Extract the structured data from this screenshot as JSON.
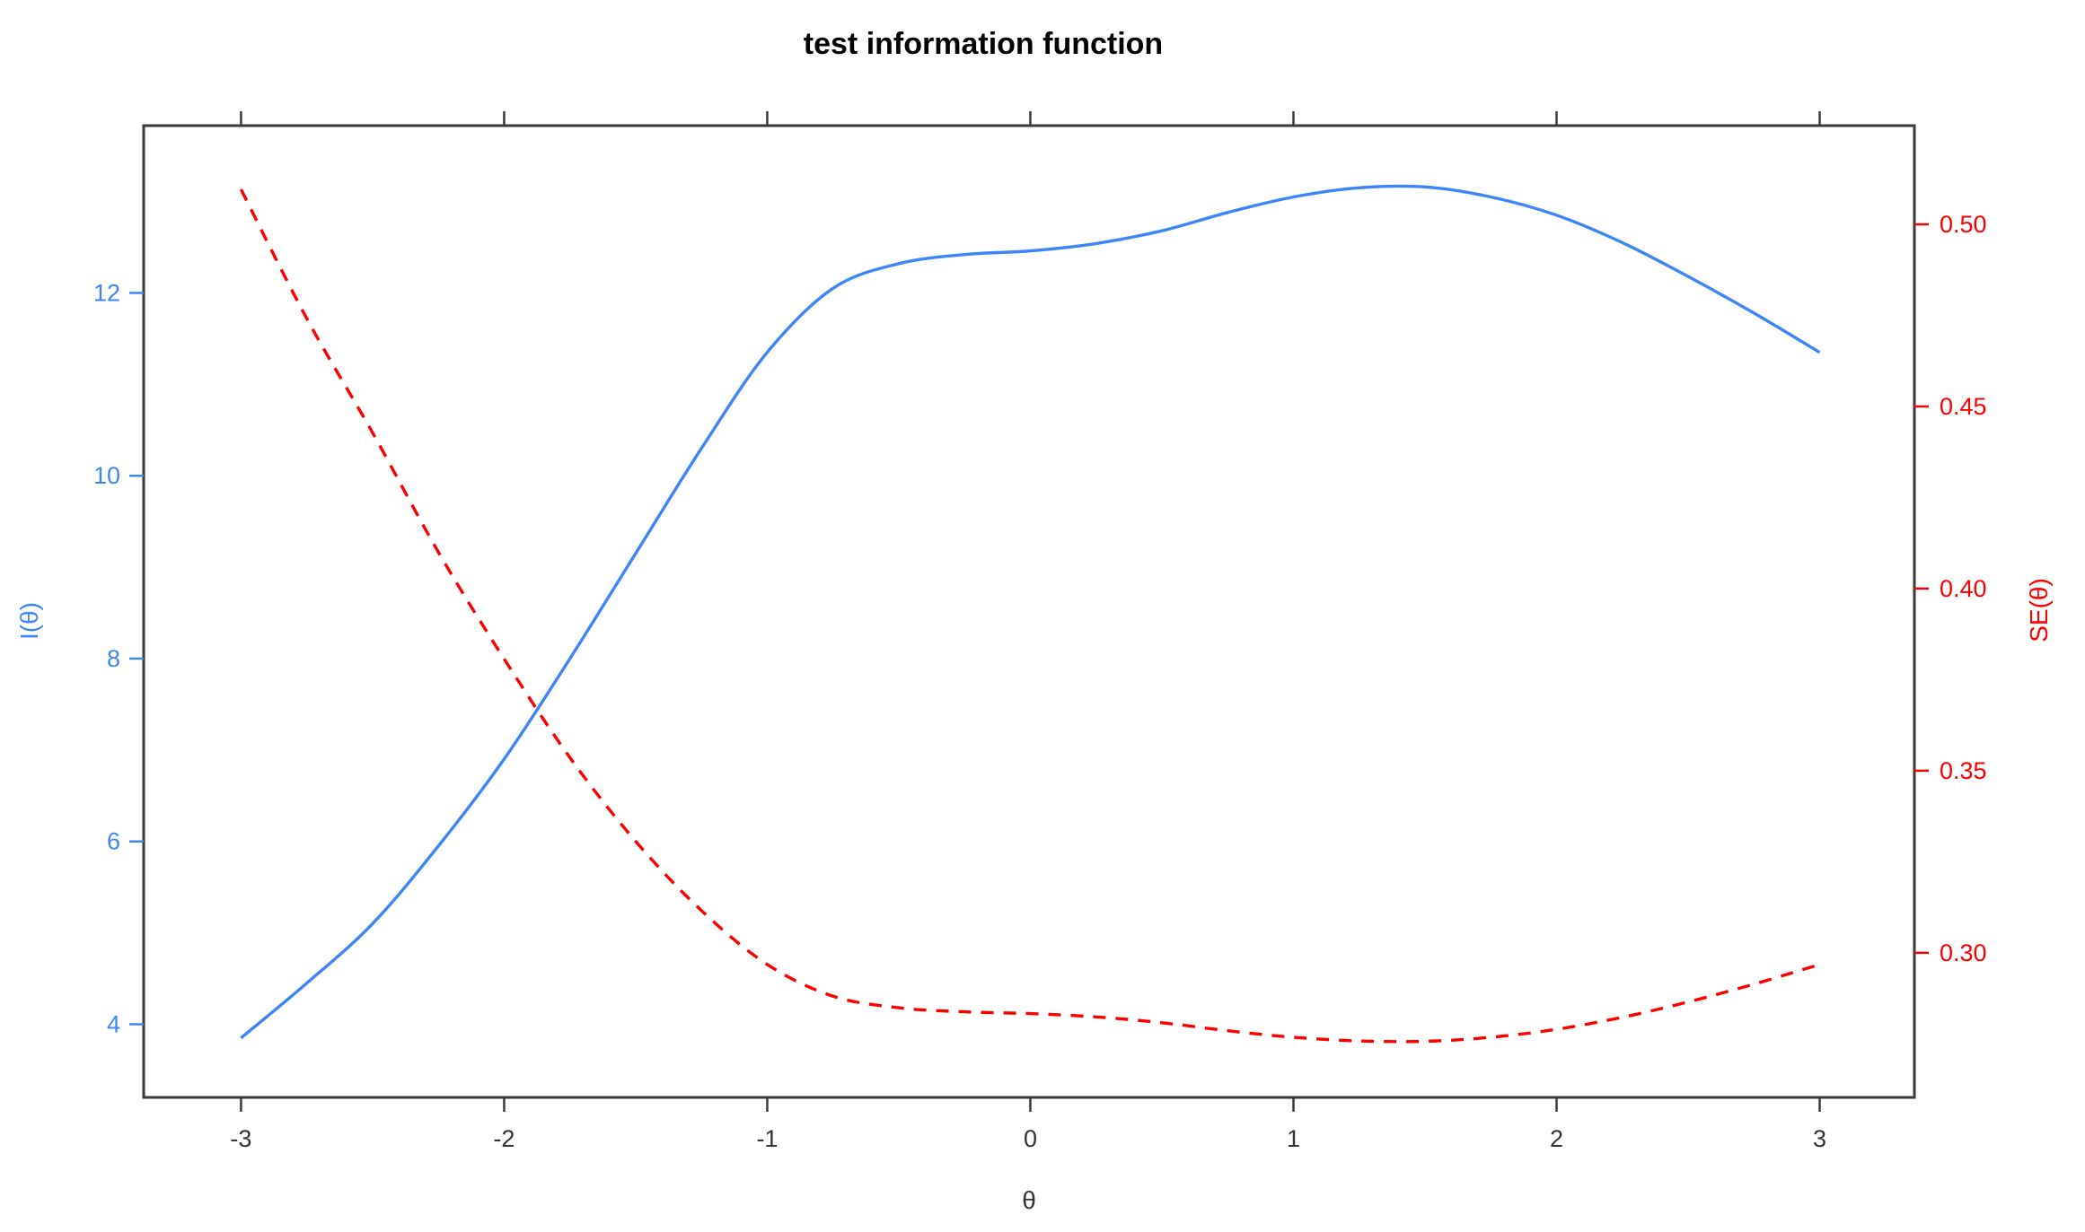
{
  "title": "test information function",
  "colors": {
    "left_series": "#3E86F8",
    "right_series": "#FF0000",
    "axis_frame": "#3a3a3a",
    "x_tick_text": "#333333"
  },
  "chart_data": {
    "type": "line",
    "title": "test information function",
    "xlabel": "θ",
    "ylabel_left": "I(θ)",
    "ylabel_right": "SE(θ)",
    "legend": "none",
    "grid": false,
    "x_range": [
      -3.37,
      3.36
    ],
    "y_left_range": [
      3.2,
      13.83
    ],
    "y_right_range": [
      0.2603,
      0.5271
    ],
    "x_ticks": [
      -3,
      -2,
      -1,
      0,
      1,
      2,
      3
    ],
    "x_tick_labels": [
      "-3",
      "-2",
      "-1",
      "0",
      "1",
      "2",
      "3"
    ],
    "y_left_ticks": [
      4,
      6,
      8,
      10,
      12
    ],
    "y_left_tick_labels": [
      "4",
      "6",
      "8",
      "10",
      "12"
    ],
    "y_right_ticks": [
      0.3,
      0.35,
      0.4,
      0.45,
      0.5
    ],
    "y_right_tick_labels": [
      "0.30",
      "0.35",
      "0.40",
      "0.45",
      "0.50"
    ],
    "series": [
      {
        "name": "I(θ)",
        "axis": "left",
        "color": "#3E86F8",
        "line_style": "solid",
        "x": [
          -3,
          -2.75,
          -2.5,
          -2.25,
          -2,
          -1.75,
          -1.5,
          -1.25,
          -1,
          -0.75,
          -0.5,
          -0.25,
          0,
          0.25,
          0.5,
          0.75,
          1,
          1.25,
          1.5,
          1.75,
          2,
          2.25,
          2.5,
          2.75,
          3
        ],
        "y": [
          3.85,
          4.45,
          5.1,
          5.95,
          6.9,
          8.0,
          9.15,
          10.3,
          11.35,
          12.05,
          12.32,
          12.42,
          12.46,
          12.54,
          12.68,
          12.88,
          13.05,
          13.15,
          13.16,
          13.05,
          12.85,
          12.55,
          12.18,
          11.78,
          11.35
        ]
      },
      {
        "name": "SE(θ)",
        "axis": "right",
        "color": "#FF0000",
        "line_style": "dashed",
        "x": [
          -3,
          -2.75,
          -2.5,
          -2.25,
          -2,
          -1.75,
          -1.5,
          -1.25,
          -1,
          -0.75,
          -0.5,
          -0.25,
          0,
          0.25,
          0.5,
          0.75,
          1,
          1.25,
          1.5,
          1.75,
          2,
          2.25,
          2.5,
          2.75,
          3
        ],
        "y": [
          0.5096,
          0.4741,
          0.4428,
          0.41,
          0.3807,
          0.3536,
          0.3306,
          0.3116,
          0.2968,
          0.2881,
          0.2849,
          0.2838,
          0.2833,
          0.2824,
          0.2808,
          0.2786,
          0.2768,
          0.2758,
          0.2757,
          0.2768,
          0.279,
          0.2823,
          0.2865,
          0.2914,
          0.2968
        ]
      }
    ]
  }
}
